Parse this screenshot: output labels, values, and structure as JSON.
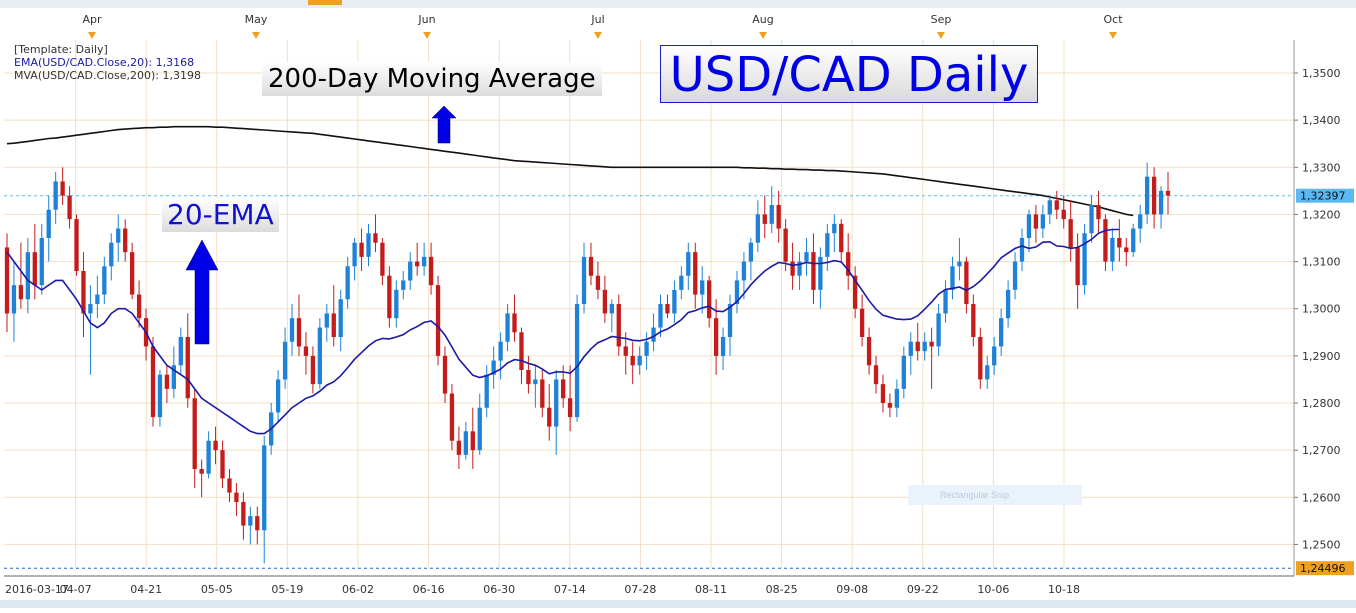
{
  "colors": {
    "up_candle": "#1f82d8",
    "down_candle": "#c41b1b",
    "ema_line": "#1a1aa6",
    "ma_line": "#111111",
    "grid": "#f2dfc2",
    "last_price_bg": "#5bb8f0",
    "low_price_bg": "#f0a020",
    "arrow": "#0000e6",
    "axis_marker": "#f0a020"
  },
  "legend": {
    "template": "[Template: Daily]",
    "ema": "EMA(USD/CAD.Close,20): 1,3168",
    "mva": "MVA(USD/CAD.Close,200): 1,3198"
  },
  "annotations": {
    "title": "USD/CAD Daily",
    "ma200_label": "200-Day Moving Average",
    "ema_label": "20-EMA",
    "snip_ghost": "Rectangular Snip"
  },
  "chart_data": {
    "type": "candlestick",
    "title": "USD/CAD Daily",
    "y_range": [
      1.245,
      1.357
    ],
    "y_ticks": [
      {
        "value": 1.35,
        "label": "1,3500"
      },
      {
        "value": 1.34,
        "label": "1,3400"
      },
      {
        "value": 1.33,
        "label": "1,3300"
      },
      {
        "value": 1.32,
        "label": "1,3200"
      },
      {
        "value": 1.31,
        "label": "1,3100"
      },
      {
        "value": 1.3,
        "label": "1,3000"
      },
      {
        "value": 1.29,
        "label": "1,2900"
      },
      {
        "value": 1.28,
        "label": "1,2800"
      },
      {
        "value": 1.27,
        "label": "1,2700"
      },
      {
        "value": 1.26,
        "label": "1,2600"
      },
      {
        "value": 1.25,
        "label": "1,2500"
      }
    ],
    "x_ticks": [
      "2016-03-17",
      "04-07",
      "04-21",
      "05-05",
      "05-19",
      "06-02",
      "06-16",
      "06-30",
      "07-14",
      "07-28",
      "08-11",
      "08-25",
      "09-08",
      "09-22",
      "10-06",
      "10-18"
    ],
    "month_labels": [
      "Apr",
      "May",
      "Jun",
      "Jul",
      "Aug",
      "Sep",
      "Oct"
    ],
    "last_price": {
      "value": 1.32397,
      "label": "1,32397"
    },
    "low_price": {
      "value": 1.24496,
      "label": "1,24496"
    },
    "ohlc": [
      [
        1.313,
        1.316,
        1.295,
        1.299
      ],
      [
        1.299,
        1.31,
        1.293,
        1.305
      ],
      [
        1.305,
        1.314,
        1.3,
        1.302
      ],
      [
        1.302,
        1.315,
        1.299,
        1.312
      ],
      [
        1.312,
        1.318,
        1.302,
        1.305
      ],
      [
        1.305,
        1.318,
        1.303,
        1.315
      ],
      [
        1.315,
        1.324,
        1.31,
        1.321
      ],
      [
        1.321,
        1.329,
        1.318,
        1.327
      ],
      [
        1.327,
        1.33,
        1.322,
        1.324
      ],
      [
        1.324,
        1.326,
        1.317,
        1.319
      ],
      [
        1.319,
        1.32,
        1.307,
        1.308
      ],
      [
        1.308,
        1.312,
        1.294,
        1.299
      ],
      [
        1.299,
        1.305,
        1.286,
        1.301
      ],
      [
        1.301,
        1.307,
        1.298,
        1.303
      ],
      [
        1.303,
        1.311,
        1.301,
        1.309
      ],
      [
        1.309,
        1.316,
        1.306,
        1.314
      ],
      [
        1.314,
        1.32,
        1.31,
        1.317
      ],
      [
        1.317,
        1.319,
        1.31,
        1.312
      ],
      [
        1.312,
        1.314,
        1.302,
        1.303
      ],
      [
        1.303,
        1.306,
        1.296,
        1.298
      ],
      [
        1.298,
        1.3,
        1.289,
        1.292
      ],
      [
        1.292,
        1.294,
        1.275,
        1.277
      ],
      [
        1.277,
        1.287,
        1.275,
        1.286
      ],
      [
        1.286,
        1.288,
        1.28,
        1.283
      ],
      [
        1.283,
        1.292,
        1.281,
        1.288
      ],
      [
        1.288,
        1.296,
        1.286,
        1.294
      ],
      [
        1.294,
        1.299,
        1.279,
        1.281
      ],
      [
        1.281,
        1.283,
        1.262,
        1.266
      ],
      [
        1.266,
        1.268,
        1.26,
        1.265
      ],
      [
        1.265,
        1.274,
        1.264,
        1.272
      ],
      [
        1.272,
        1.275,
        1.267,
        1.27
      ],
      [
        1.27,
        1.272,
        1.262,
        1.264
      ],
      [
        1.264,
        1.266,
        1.259,
        1.261
      ],
      [
        1.261,
        1.263,
        1.256,
        1.259
      ],
      [
        1.259,
        1.261,
        1.251,
        1.254
      ],
      [
        1.254,
        1.258,
        1.25,
        1.256
      ],
      [
        1.256,
        1.258,
        1.25,
        1.253
      ],
      [
        1.253,
        1.273,
        1.246,
        1.271
      ],
      [
        1.271,
        1.28,
        1.269,
        1.278
      ],
      [
        1.278,
        1.287,
        1.276,
        1.285
      ],
      [
        1.285,
        1.296,
        1.283,
        1.293
      ],
      [
        1.293,
        1.301,
        1.29,
        1.298
      ],
      [
        1.298,
        1.303,
        1.29,
        1.292
      ],
      [
        1.292,
        1.295,
        1.286,
        1.29
      ],
      [
        1.29,
        1.292,
        1.282,
        1.284
      ],
      [
        1.284,
        1.298,
        1.283,
        1.296
      ],
      [
        1.296,
        1.301,
        1.293,
        1.299
      ],
      [
        1.299,
        1.305,
        1.292,
        1.294
      ],
      [
        1.294,
        1.304,
        1.291,
        1.302
      ],
      [
        1.302,
        1.311,
        1.3,
        1.309
      ],
      [
        1.309,
        1.315,
        1.306,
        1.314
      ],
      [
        1.314,
        1.317,
        1.308,
        1.311
      ],
      [
        1.311,
        1.318,
        1.309,
        1.316
      ],
      [
        1.316,
        1.32,
        1.312,
        1.314
      ],
      [
        1.314,
        1.315,
        1.305,
        1.307
      ],
      [
        1.307,
        1.309,
        1.296,
        1.298
      ],
      [
        1.298,
        1.306,
        1.296,
        1.304
      ],
      [
        1.304,
        1.308,
        1.302,
        1.306
      ],
      [
        1.306,
        1.312,
        1.304,
        1.31
      ],
      [
        1.31,
        1.314,
        1.307,
        1.309
      ],
      [
        1.309,
        1.314,
        1.307,
        1.311
      ],
      [
        1.311,
        1.314,
        1.303,
        1.305
      ],
      [
        1.305,
        1.307,
        1.288,
        1.29
      ],
      [
        1.29,
        1.292,
        1.28,
        1.282
      ],
      [
        1.282,
        1.284,
        1.27,
        1.272
      ],
      [
        1.272,
        1.275,
        1.266,
        1.269
      ],
      [
        1.269,
        1.276,
        1.268,
        1.274
      ],
      [
        1.274,
        1.279,
        1.266,
        1.27
      ],
      [
        1.27,
        1.282,
        1.269,
        1.279
      ],
      [
        1.279,
        1.288,
        1.277,
        1.286
      ],
      [
        1.286,
        1.292,
        1.283,
        1.289
      ],
      [
        1.289,
        1.295,
        1.285,
        1.293
      ],
      [
        1.293,
        1.301,
        1.291,
        1.299
      ],
      [
        1.299,
        1.303,
        1.293,
        1.295
      ],
      [
        1.295,
        1.296,
        1.284,
        1.287
      ],
      [
        1.287,
        1.29,
        1.282,
        1.284
      ],
      [
        1.284,
        1.288,
        1.279,
        1.285
      ],
      [
        1.285,
        1.287,
        1.277,
        1.279
      ],
      [
        1.279,
        1.284,
        1.272,
        1.275
      ],
      [
        1.275,
        1.287,
        1.269,
        1.285
      ],
      [
        1.285,
        1.288,
        1.279,
        1.281
      ],
      [
        1.281,
        1.288,
        1.274,
        1.277
      ],
      [
        1.277,
        1.303,
        1.276,
        1.301
      ],
      [
        1.301,
        1.314,
        1.299,
        1.311
      ],
      [
        1.311,
        1.314,
        1.305,
        1.307
      ],
      [
        1.307,
        1.31,
        1.302,
        1.304
      ],
      [
        1.304,
        1.307,
        1.297,
        1.299
      ],
      [
        1.299,
        1.302,
        1.295,
        1.301
      ],
      [
        1.301,
        1.303,
        1.29,
        1.292
      ],
      [
        1.292,
        1.295,
        1.286,
        1.29
      ],
      [
        1.29,
        1.293,
        1.284,
        1.288
      ],
      [
        1.288,
        1.292,
        1.286,
        1.29
      ],
      [
        1.29,
        1.295,
        1.287,
        1.293
      ],
      [
        1.293,
        1.299,
        1.291,
        1.296
      ],
      [
        1.296,
        1.303,
        1.294,
        1.301
      ],
      [
        1.301,
        1.303,
        1.298,
        1.299
      ],
      [
        1.299,
        1.306,
        1.297,
        1.304
      ],
      [
        1.304,
        1.309,
        1.302,
        1.307
      ],
      [
        1.307,
        1.314,
        1.304,
        1.312
      ],
      [
        1.312,
        1.314,
        1.3,
        1.303
      ],
      [
        1.303,
        1.309,
        1.299,
        1.306
      ],
      [
        1.306,
        1.307,
        1.296,
        1.298
      ],
      [
        1.298,
        1.302,
        1.286,
        1.29
      ],
      [
        1.29,
        1.296,
        1.287,
        1.294
      ],
      [
        1.294,
        1.303,
        1.29,
        1.301
      ],
      [
        1.301,
        1.308,
        1.299,
        1.306
      ],
      [
        1.306,
        1.312,
        1.302,
        1.31
      ],
      [
        1.31,
        1.315,
        1.306,
        1.314
      ],
      [
        1.314,
        1.323,
        1.312,
        1.32
      ],
      [
        1.32,
        1.324,
        1.315,
        1.318
      ],
      [
        1.318,
        1.326,
        1.316,
        1.322
      ],
      [
        1.322,
        1.325,
        1.314,
        1.317
      ],
      [
        1.317,
        1.319,
        1.308,
        1.31
      ],
      [
        1.31,
        1.314,
        1.304,
        1.307
      ],
      [
        1.307,
        1.312,
        1.304,
        1.31
      ],
      [
        1.31,
        1.315,
        1.307,
        1.312
      ],
      [
        1.312,
        1.316,
        1.301,
        1.304
      ],
      [
        1.304,
        1.313,
        1.3,
        1.311
      ],
      [
        1.311,
        1.318,
        1.308,
        1.316
      ],
      [
        1.316,
        1.32,
        1.312,
        1.318
      ],
      [
        1.318,
        1.319,
        1.31,
        1.312
      ],
      [
        1.312,
        1.316,
        1.304,
        1.307
      ],
      [
        1.307,
        1.309,
        1.298,
        1.3
      ],
      [
        1.3,
        1.303,
        1.292,
        1.294
      ],
      [
        1.294,
        1.296,
        1.286,
        1.288
      ],
      [
        1.288,
        1.29,
        1.282,
        1.284
      ],
      [
        1.284,
        1.286,
        1.278,
        1.28
      ],
      [
        1.28,
        1.282,
        1.277,
        1.279
      ],
      [
        1.279,
        1.285,
        1.277,
        1.283
      ],
      [
        1.283,
        1.292,
        1.281,
        1.29
      ],
      [
        1.29,
        1.295,
        1.286,
        1.293
      ],
      [
        1.293,
        1.297,
        1.289,
        1.291
      ],
      [
        1.291,
        1.295,
        1.289,
        1.293
      ],
      [
        1.293,
        1.296,
        1.283,
        1.292
      ],
      [
        1.292,
        1.301,
        1.29,
        1.299
      ],
      [
        1.299,
        1.306,
        1.297,
        1.304
      ],
      [
        1.304,
        1.311,
        1.302,
        1.309
      ],
      [
        1.309,
        1.315,
        1.306,
        1.31
      ],
      [
        1.31,
        1.311,
        1.299,
        1.301
      ],
      [
        1.301,
        1.303,
        1.292,
        1.294
      ],
      [
        1.294,
        1.296,
        1.283,
        1.285
      ],
      [
        1.285,
        1.29,
        1.283,
        1.288
      ],
      [
        1.288,
        1.294,
        1.286,
        1.292
      ],
      [
        1.292,
        1.3,
        1.29,
        1.298
      ],
      [
        1.298,
        1.306,
        1.296,
        1.304
      ],
      [
        1.304,
        1.312,
        1.302,
        1.31
      ],
      [
        1.31,
        1.317,
        1.308,
        1.315
      ],
      [
        1.315,
        1.321,
        1.312,
        1.32
      ],
      [
        1.32,
        1.322,
        1.314,
        1.317
      ],
      [
        1.317,
        1.322,
        1.315,
        1.32
      ],
      [
        1.32,
        1.324,
        1.318,
        1.323
      ],
      [
        1.323,
        1.325,
        1.319,
        1.321
      ],
      [
        1.321,
        1.324,
        1.317,
        1.319
      ],
      [
        1.319,
        1.323,
        1.31,
        1.313
      ],
      [
        1.313,
        1.316,
        1.3,
        1.305
      ],
      [
        1.305,
        1.318,
        1.303,
        1.316
      ],
      [
        1.316,
        1.324,
        1.314,
        1.322
      ],
      [
        1.322,
        1.325,
        1.316,
        1.319
      ],
      [
        1.319,
        1.32,
        1.308,
        1.31
      ],
      [
        1.31,
        1.317,
        1.308,
        1.315
      ],
      [
        1.315,
        1.319,
        1.31,
        1.313
      ],
      [
        1.313,
        1.315,
        1.309,
        1.312
      ],
      [
        1.312,
        1.318,
        1.311,
        1.317
      ],
      [
        1.317,
        1.322,
        1.314,
        1.32
      ],
      [
        1.32,
        1.331,
        1.318,
        1.328
      ],
      [
        1.328,
        1.33,
        1.317,
        1.32
      ],
      [
        1.32,
        1.326,
        1.317,
        1.325
      ],
      [
        1.325,
        1.329,
        1.32,
        1.324
      ]
    ],
    "ema20": [
      1.312,
      1.31,
      1.308,
      1.306,
      1.305,
      1.304,
      1.305,
      1.306,
      1.306,
      1.304,
      1.302,
      1.2995,
      1.297,
      1.296,
      1.297,
      1.299,
      1.3,
      1.3,
      1.299,
      1.297,
      1.295,
      1.292,
      1.29,
      1.288,
      1.287,
      1.286,
      1.285,
      1.283,
      1.281,
      1.28,
      1.279,
      1.278,
      1.277,
      1.276,
      1.275,
      1.274,
      1.2735,
      1.2735,
      1.2745,
      1.276,
      1.2775,
      1.279,
      1.28,
      1.281,
      1.2815,
      1.2825,
      1.2838,
      1.2845,
      1.2858,
      1.2875,
      1.2893,
      1.2907,
      1.2921,
      1.2932,
      1.2937,
      1.2936,
      1.294,
      1.2945,
      1.2955,
      1.2962,
      1.2971,
      1.2974,
      1.2962,
      1.2944,
      1.2919,
      1.2893,
      1.2876,
      1.2859,
      1.2854,
      1.2858,
      1.2864,
      1.2872,
      1.2885,
      1.2892,
      1.289,
      1.2884,
      1.288,
      1.2872,
      1.2862,
      1.2866,
      1.2866,
      1.2863,
      1.2877,
      1.2898,
      1.2915,
      1.2928,
      1.2934,
      1.2941,
      1.2939,
      1.2937,
      1.2933,
      1.2932,
      1.2935,
      1.2941,
      1.2951,
      1.2957,
      1.2966,
      1.2977,
      1.2992,
      1.2996,
      1.3002,
      1.3005,
      1.2995,
      1.2994,
      1.3003,
      1.3015,
      1.3032,
      1.3051,
      1.3066,
      1.308,
      1.309,
      1.3098,
      1.3096,
      1.3092,
      1.3094,
      1.3098,
      1.3096,
      1.3096,
      1.3098,
      1.3102,
      1.3099,
      1.3082,
      1.306,
      1.3039,
      1.3017,
      1.2999,
      1.2986,
      1.2982,
      1.2978,
      1.2977,
      1.2978,
      1.2985,
      1.2999,
      1.3014,
      1.3031,
      1.3041,
      1.3043,
      1.3046,
      1.3039,
      1.3047,
      1.3059,
      1.3074,
      1.309,
      1.3108,
      1.3118,
      1.3128,
      1.3133,
      1.3128,
      1.3131,
      1.3141,
      1.3142,
      1.3133,
      1.3132,
      1.3128,
      1.313,
      1.3138,
      1.3147,
      1.316,
      1.3166,
      1.3168,
      1.3168
    ],
    "ma200": [
      1.335,
      1.3351,
      1.3353,
      1.3355,
      1.3357,
      1.3359,
      1.3361,
      1.3362,
      1.3364,
      1.3366,
      1.3368,
      1.337,
      1.3372,
      1.3374,
      1.3376,
      1.3378,
      1.338,
      1.3381,
      1.3382,
      1.3383,
      1.3384,
      1.3384,
      1.3385,
      1.3385,
      1.3386,
      1.3386,
      1.3386,
      1.3386,
      1.3386,
      1.3386,
      1.3385,
      1.3385,
      1.3384,
      1.3383,
      1.3382,
      1.3381,
      1.338,
      1.3379,
      1.3378,
      1.3377,
      1.3376,
      1.3375,
      1.3374,
      1.3373,
      1.3372,
      1.337,
      1.3368,
      1.3366,
      1.3364,
      1.3362,
      1.336,
      1.3358,
      1.3356,
      1.3354,
      1.3352,
      1.335,
      1.3348,
      1.3346,
      1.3344,
      1.3342,
      1.334,
      1.3338,
      1.3336,
      1.3334,
      1.3332,
      1.333,
      1.3328,
      1.3326,
      1.3324,
      1.3322,
      1.332,
      1.3318,
      1.3316,
      1.3314,
      1.3313,
      1.3312,
      1.3311,
      1.331,
      1.3309,
      1.3308,
      1.3307,
      1.3306,
      1.3305,
      1.3304,
      1.3303,
      1.3302,
      1.3301,
      1.33,
      1.33,
      1.33,
      1.33,
      1.33,
      1.33,
      1.33,
      1.33,
      1.33,
      1.33,
      1.33,
      1.33,
      1.33,
      1.33,
      1.33,
      1.33,
      1.33,
      1.33,
      1.33,
      1.3299,
      1.3299,
      1.3298,
      1.3298,
      1.3297,
      1.3297,
      1.3296,
      1.3296,
      1.3295,
      1.3295,
      1.3294,
      1.3294,
      1.3293,
      1.3293,
      1.3292,
      1.3291,
      1.329,
      1.3289,
      1.3288,
      1.3287,
      1.3286,
      1.3284,
      1.3282,
      1.328,
      1.3278,
      1.3276,
      1.3274,
      1.3272,
      1.327,
      1.3268,
      1.3266,
      1.3264,
      1.3262,
      1.326,
      1.3258,
      1.3256,
      1.3254,
      1.3252,
      1.325,
      1.3248,
      1.3246,
      1.3244,
      1.3242,
      1.324,
      1.3237,
      1.3234,
      1.3231,
      1.3228,
      1.3225,
      1.3222,
      1.3219,
      1.3216,
      1.3212,
      1.3208,
      1.3204,
      1.32,
      1.3198
    ]
  }
}
